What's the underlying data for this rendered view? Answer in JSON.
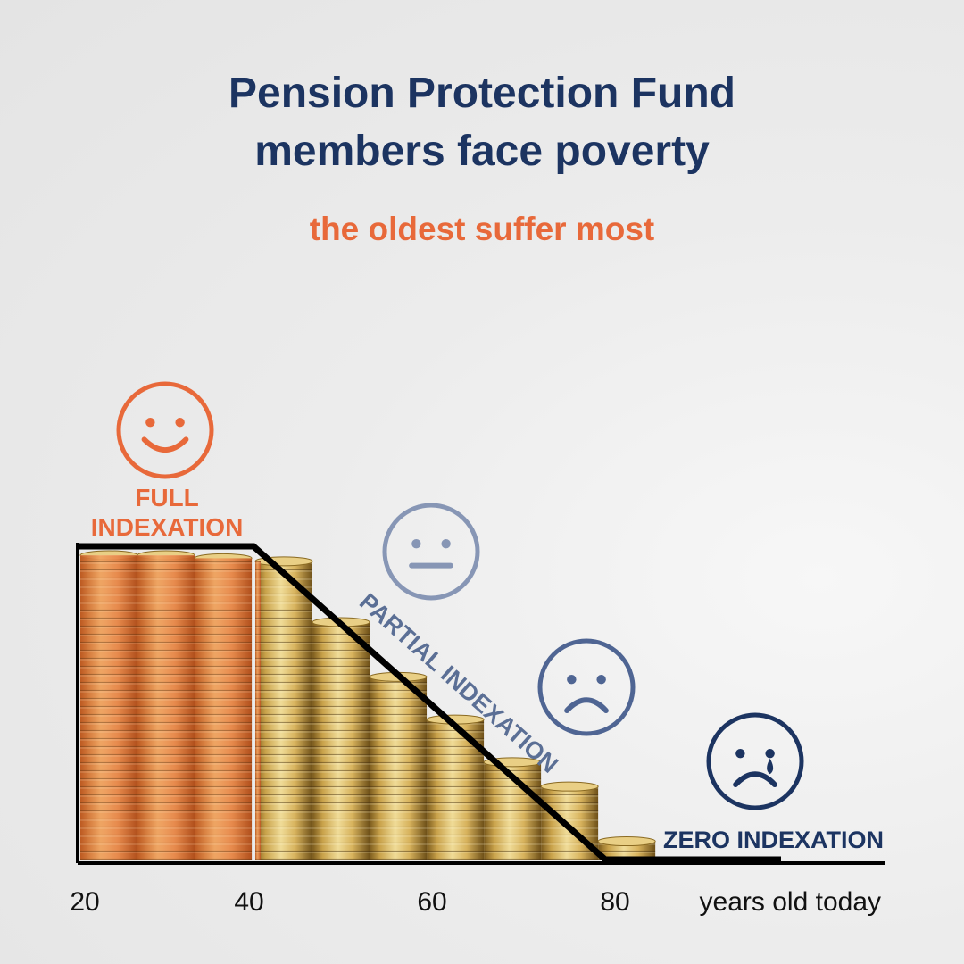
{
  "title_line1": "Pension Protection Fund",
  "title_line2": "members face poverty",
  "subtitle": "the oldest suffer most",
  "colors": {
    "title": "#1c3461",
    "accent": "#e8693a",
    "partial": "#5b6f95",
    "faint_face": "#8796b5",
    "sad_face": "#4f6593",
    "zero": "#1c3461",
    "line": "#000000"
  },
  "chart_data": {
    "type": "area",
    "x": [
      20,
      40,
      80,
      100
    ],
    "y": [
      100,
      100,
      0,
      0
    ],
    "x_ticks": [
      "20",
      "40",
      "60",
      "80"
    ],
    "xlabel": "years old today",
    "ylabel": "",
    "zones": [
      {
        "label_lines": [
          "FULL",
          "INDEXATION"
        ],
        "face": "happy-face-icon"
      },
      {
        "label_lines": [
          "PARTIAL INDEXATION"
        ],
        "face": "neutral-face-icon"
      },
      {
        "label_lines": [],
        "face": "sad-face-icon"
      },
      {
        "label_lines": [
          "ZERO INDEXATION"
        ],
        "face": "crying-face-icon"
      }
    ],
    "coin_stacks": {
      "ages": [
        20,
        26.5,
        33,
        40,
        46.5,
        53,
        59.5,
        66,
        72.5,
        79
      ],
      "relative_height": [
        1.0,
        1.0,
        0.99,
        0.98,
        0.78,
        0.6,
        0.46,
        0.32,
        0.24,
        0.06
      ]
    }
  }
}
